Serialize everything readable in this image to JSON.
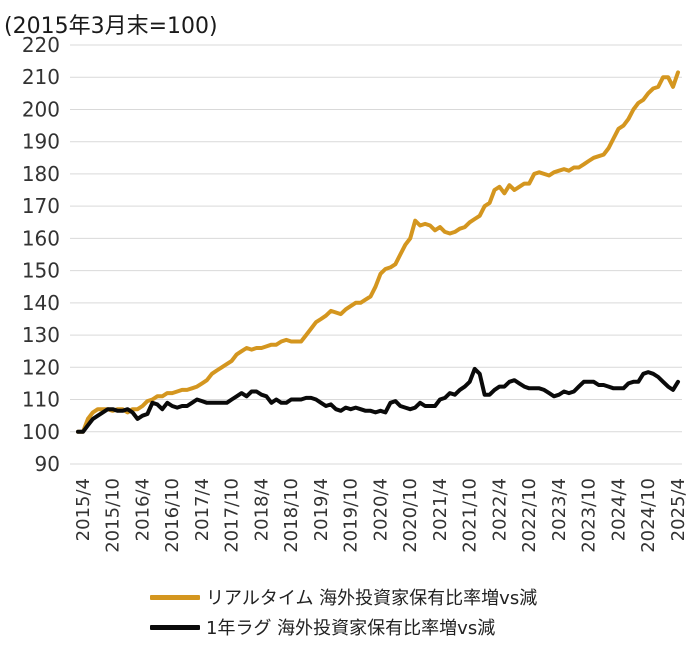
{
  "chart_data": {
    "type": "line",
    "title": "",
    "unit_label": "(2015年3月末=100)",
    "xlabel": "",
    "ylabel": "",
    "ylim": [
      90,
      220
    ],
    "yticks": [
      90,
      100,
      110,
      120,
      130,
      140,
      150,
      160,
      170,
      180,
      190,
      200,
      210,
      220
    ],
    "xticks": [
      "2015/4",
      "2015/10",
      "2016/4",
      "2016/10",
      "2017/4",
      "2017/10",
      "2018/4",
      "2018/10",
      "2019/4",
      "2019/10",
      "2020/4",
      "2020/10",
      "2021/4",
      "2021/10",
      "2022/4",
      "2022/10",
      "2023/4",
      "2023/10",
      "2024/4",
      "2024/10",
      "2025/4"
    ],
    "grid": "horizontal",
    "legend_position": "bottom",
    "series": [
      {
        "name": "リアルタイム 海外投資家保有比率増vs減",
        "color": "#D4961F",
        "points": [
          [
            "2015/3",
            100
          ],
          [
            "2015/4",
            100
          ],
          [
            "2015/5",
            104
          ],
          [
            "2015/6",
            106
          ],
          [
            "2015/7",
            107
          ],
          [
            "2015/8",
            107
          ],
          [
            "2015/9",
            107
          ],
          [
            "2015/10",
            106.5
          ],
          [
            "2015/11",
            107
          ],
          [
            "2015/12",
            107
          ],
          [
            "2016/1",
            106
          ],
          [
            "2016/2",
            107
          ],
          [
            "2016/3",
            107
          ],
          [
            "2016/4",
            108
          ],
          [
            "2016/5",
            109.5
          ],
          [
            "2016/6",
            110
          ],
          [
            "2016/7",
            111
          ],
          [
            "2016/8",
            111
          ],
          [
            "2016/9",
            112
          ],
          [
            "2016/10",
            112
          ],
          [
            "2016/11",
            112.5
          ],
          [
            "2016/12",
            113
          ],
          [
            "2017/1",
            113
          ],
          [
            "2017/2",
            113.5
          ],
          [
            "2017/3",
            114
          ],
          [
            "2017/4",
            115
          ],
          [
            "2017/5",
            116
          ],
          [
            "2017/6",
            118
          ],
          [
            "2017/7",
            119
          ],
          [
            "2017/8",
            120
          ],
          [
            "2017/9",
            121
          ],
          [
            "2017/10",
            122
          ],
          [
            "2017/11",
            124
          ],
          [
            "2017/12",
            125
          ],
          [
            "2018/1",
            126
          ],
          [
            "2018/2",
            125.5
          ],
          [
            "2018/3",
            126
          ],
          [
            "2018/4",
            126
          ],
          [
            "2018/5",
            126.5
          ],
          [
            "2018/6",
            127
          ],
          [
            "2018/7",
            127
          ],
          [
            "2018/8",
            128
          ],
          [
            "2018/9",
            128.5
          ],
          [
            "2018/10",
            128
          ],
          [
            "2018/11",
            128
          ],
          [
            "2018/12",
            128
          ],
          [
            "2019/1",
            130
          ],
          [
            "2019/2",
            132
          ],
          [
            "2019/3",
            134
          ],
          [
            "2019/4",
            135
          ],
          [
            "2019/5",
            136
          ],
          [
            "2019/6",
            137.5
          ],
          [
            "2019/7",
            137
          ],
          [
            "2019/8",
            136.5
          ],
          [
            "2019/9",
            138
          ],
          [
            "2019/10",
            139
          ],
          [
            "2019/11",
            140
          ],
          [
            "2019/12",
            140
          ],
          [
            "2020/1",
            141
          ],
          [
            "2020/2",
            142
          ],
          [
            "2020/3",
            145
          ],
          [
            "2020/4",
            149
          ],
          [
            "2020/5",
            150.5
          ],
          [
            "2020/6",
            151
          ],
          [
            "2020/7",
            152
          ],
          [
            "2020/8",
            155
          ],
          [
            "2020/9",
            158
          ],
          [
            "2020/10",
            160
          ],
          [
            "2020/11",
            165.5
          ],
          [
            "2020/12",
            164
          ],
          [
            "2021/1",
            164.5
          ],
          [
            "2021/2",
            164
          ],
          [
            "2021/3",
            162.5
          ],
          [
            "2021/4",
            163.5
          ],
          [
            "2021/5",
            162
          ],
          [
            "2021/6",
            161.5
          ],
          [
            "2021/7",
            162
          ],
          [
            "2021/8",
            163
          ],
          [
            "2021/9",
            163.5
          ],
          [
            "2021/10",
            165
          ],
          [
            "2021/11",
            166
          ],
          [
            "2021/12",
            167
          ],
          [
            "2022/1",
            170
          ],
          [
            "2022/2",
            171
          ],
          [
            "2022/3",
            175
          ],
          [
            "2022/4",
            176
          ],
          [
            "2022/5",
            174
          ],
          [
            "2022/6",
            176.5
          ],
          [
            "2022/7",
            175
          ],
          [
            "2022/8",
            176
          ],
          [
            "2022/9",
            177
          ],
          [
            "2022/10",
            177
          ],
          [
            "2022/11",
            180
          ],
          [
            "2022/12",
            180.5
          ],
          [
            "2023/1",
            180
          ],
          [
            "2023/2",
            179.5
          ],
          [
            "2023/3",
            180.5
          ],
          [
            "2023/4",
            181
          ],
          [
            "2023/5",
            181.5
          ],
          [
            "2023/6",
            181
          ],
          [
            "2023/7",
            182
          ],
          [
            "2023/8",
            182
          ],
          [
            "2023/9",
            183
          ],
          [
            "2023/10",
            184
          ],
          [
            "2023/11",
            185
          ],
          [
            "2023/12",
            185.5
          ],
          [
            "2024/1",
            186
          ],
          [
            "2024/2",
            188
          ],
          [
            "2024/3",
            191
          ],
          [
            "2024/4",
            194
          ],
          [
            "2024/5",
            195
          ],
          [
            "2024/6",
            197
          ],
          [
            "2024/7",
            200
          ],
          [
            "2024/8",
            202
          ],
          [
            "2024/9",
            203
          ],
          [
            "2024/10",
            205
          ],
          [
            "2024/11",
            206.5
          ],
          [
            "2024/12",
            207
          ],
          [
            "2025/1",
            210
          ],
          [
            "2025/2",
            210
          ],
          [
            "2025/3",
            207
          ],
          [
            "2025/4",
            211.5
          ]
        ]
      },
      {
        "name": "1年ラグ 海外投資家保有比率増vs減",
        "color": "#0A0A0A",
        "points": [
          [
            "2015/3",
            100
          ],
          [
            "2015/4",
            100
          ],
          [
            "2015/5",
            102
          ],
          [
            "2015/6",
            104
          ],
          [
            "2015/7",
            105
          ],
          [
            "2015/8",
            106
          ],
          [
            "2015/9",
            107
          ],
          [
            "2015/10",
            107
          ],
          [
            "2015/11",
            106.5
          ],
          [
            "2015/12",
            106.5
          ],
          [
            "2016/1",
            107
          ],
          [
            "2016/2",
            106
          ],
          [
            "2016/3",
            104
          ],
          [
            "2016/4",
            105
          ],
          [
            "2016/5",
            105.5
          ],
          [
            "2016/6",
            109
          ],
          [
            "2016/7",
            108.5
          ],
          [
            "2016/8",
            107
          ],
          [
            "2016/9",
            109
          ],
          [
            "2016/10",
            108
          ],
          [
            "2016/11",
            107.5
          ],
          [
            "2016/12",
            108
          ],
          [
            "2017/1",
            108
          ],
          [
            "2017/2",
            109
          ],
          [
            "2017/3",
            110
          ],
          [
            "2017/4",
            109.5
          ],
          [
            "2017/5",
            109
          ],
          [
            "2017/6",
            109
          ],
          [
            "2017/7",
            109
          ],
          [
            "2017/8",
            109
          ],
          [
            "2017/9",
            109
          ],
          [
            "2017/10",
            110
          ],
          [
            "2017/11",
            111
          ],
          [
            "2017/12",
            112
          ],
          [
            "2018/1",
            111
          ],
          [
            "2018/2",
            112.5
          ],
          [
            "2018/3",
            112.5
          ],
          [
            "2018/4",
            111.5
          ],
          [
            "2018/5",
            111
          ],
          [
            "2018/6",
            109
          ],
          [
            "2018/7",
            110
          ],
          [
            "2018/8",
            109
          ],
          [
            "2018/9",
            109
          ],
          [
            "2018/10",
            110
          ],
          [
            "2018/11",
            110
          ],
          [
            "2018/12",
            110
          ],
          [
            "2019/1",
            110.5
          ],
          [
            "2019/2",
            110.5
          ],
          [
            "2019/3",
            110
          ],
          [
            "2019/4",
            109
          ],
          [
            "2019/5",
            108
          ],
          [
            "2019/6",
            108.5
          ],
          [
            "2019/7",
            107
          ],
          [
            "2019/8",
            106.5
          ],
          [
            "2019/9",
            107.5
          ],
          [
            "2019/10",
            107
          ],
          [
            "2019/11",
            107.5
          ],
          [
            "2019/12",
            107
          ],
          [
            "2020/1",
            106.5
          ],
          [
            "2020/2",
            106.5
          ],
          [
            "2020/3",
            106
          ],
          [
            "2020/4",
            106.5
          ],
          [
            "2020/5",
            106
          ],
          [
            "2020/6",
            109
          ],
          [
            "2020/7",
            109.5
          ],
          [
            "2020/8",
            108
          ],
          [
            "2020/9",
            107.5
          ],
          [
            "2020/10",
            107
          ],
          [
            "2020/11",
            107.5
          ],
          [
            "2020/12",
            109
          ],
          [
            "2021/1",
            108
          ],
          [
            "2021/2",
            108
          ],
          [
            "2021/3",
            108
          ],
          [
            "2021/4",
            110
          ],
          [
            "2021/5",
            110.5
          ],
          [
            "2021/6",
            112
          ],
          [
            "2021/7",
            111.5
          ],
          [
            "2021/8",
            113
          ],
          [
            "2021/9",
            114
          ],
          [
            "2021/10",
            115.5
          ],
          [
            "2021/11",
            119.5
          ],
          [
            "2021/12",
            118
          ],
          [
            "2022/1",
            111.5
          ],
          [
            "2022/2",
            111.5
          ],
          [
            "2022/3",
            113
          ],
          [
            "2022/4",
            114
          ],
          [
            "2022/5",
            114
          ],
          [
            "2022/6",
            115.5
          ],
          [
            "2022/7",
            116
          ],
          [
            "2022/8",
            115
          ],
          [
            "2022/9",
            114
          ],
          [
            "2022/10",
            113.5
          ],
          [
            "2022/11",
            113.5
          ],
          [
            "2022/12",
            113.5
          ],
          [
            "2023/1",
            113
          ],
          [
            "2023/2",
            112
          ],
          [
            "2023/3",
            111
          ],
          [
            "2023/4",
            111.5
          ],
          [
            "2023/5",
            112.5
          ],
          [
            "2023/6",
            112
          ],
          [
            "2023/7",
            112.5
          ],
          [
            "2023/8",
            114
          ],
          [
            "2023/9",
            115.5
          ],
          [
            "2023/10",
            115.5
          ],
          [
            "2023/11",
            115.5
          ],
          [
            "2023/12",
            114.5
          ],
          [
            "2024/1",
            114.5
          ],
          [
            "2024/2",
            114
          ],
          [
            "2024/3",
            113.5
          ],
          [
            "2024/4",
            113.5
          ],
          [
            "2024/5",
            113.5
          ],
          [
            "2024/6",
            115
          ],
          [
            "2024/7",
            115.5
          ],
          [
            "2024/8",
            115.5
          ],
          [
            "2024/9",
            118
          ],
          [
            "2024/10",
            118.5
          ],
          [
            "2024/11",
            118
          ],
          [
            "2024/12",
            117
          ],
          [
            "2025/1",
            115.5
          ],
          [
            "2025/2",
            114
          ],
          [
            "2025/3",
            113
          ],
          [
            "2025/4",
            115.5
          ]
        ]
      }
    ]
  }
}
